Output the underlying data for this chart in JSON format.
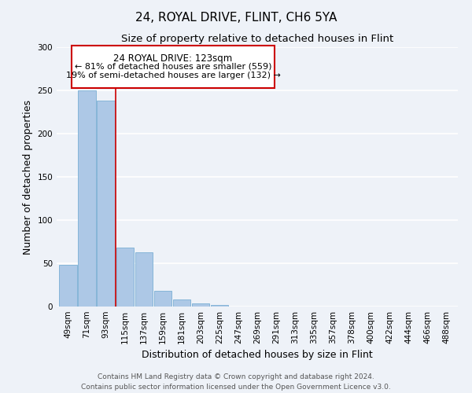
{
  "title": "24, ROYAL DRIVE, FLINT, CH6 5YA",
  "subtitle": "Size of property relative to detached houses in Flint",
  "xlabel": "Distribution of detached houses by size in Flint",
  "ylabel": "Number of detached properties",
  "bar_labels": [
    "49sqm",
    "71sqm",
    "93sqm",
    "115sqm",
    "137sqm",
    "159sqm",
    "181sqm",
    "203sqm",
    "225sqm",
    "247sqm",
    "269sqm",
    "291sqm",
    "313sqm",
    "335sqm",
    "357sqm",
    "378sqm",
    "400sqm",
    "422sqm",
    "444sqm",
    "466sqm",
    "488sqm"
  ],
  "bar_values": [
    48,
    250,
    238,
    68,
    63,
    18,
    8,
    4,
    2,
    0,
    0,
    0,
    0,
    0,
    0,
    0,
    0,
    0,
    0,
    0,
    0
  ],
  "bar_color": "#adc8e6",
  "bar_edge_color": "#7aafd4",
  "red_line_x": 2.5,
  "ylim": [
    0,
    300
  ],
  "yticks": [
    0,
    50,
    100,
    150,
    200,
    250,
    300
  ],
  "annotation_title": "24 ROYAL DRIVE: 123sqm",
  "annotation_line1": "← 81% of detached houses are smaller (559)",
  "annotation_line2": "19% of semi-detached houses are larger (132) →",
  "annotation_box_color": "#ffffff",
  "annotation_box_edge": "#cc0000",
  "footer_line1": "Contains HM Land Registry data © Crown copyright and database right 2024.",
  "footer_line2": "Contains public sector information licensed under the Open Government Licence v3.0.",
  "background_color": "#eef2f8",
  "grid_color": "#ffffff",
  "title_fontsize": 11,
  "subtitle_fontsize": 9.5,
  "axis_label_fontsize": 9,
  "tick_fontsize": 7.5,
  "footer_fontsize": 6.5
}
